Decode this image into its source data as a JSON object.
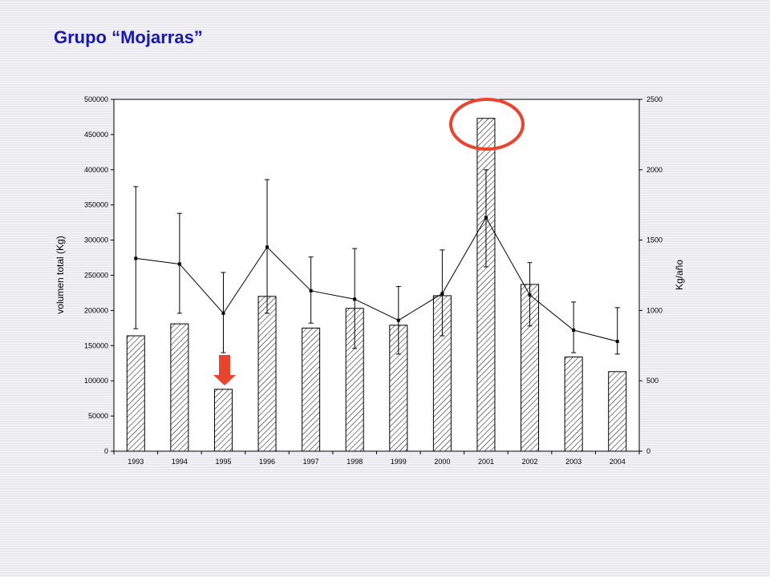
{
  "slide": {
    "title": "Grupo “Mojarras”"
  },
  "chart_data": {
    "type": "bar",
    "categories": [
      "1993",
      "1994",
      "1995",
      "1996",
      "1997",
      "1998",
      "1999",
      "2000",
      "2001",
      "2002",
      "2003",
      "2004"
    ],
    "series": [
      {
        "type": "bar",
        "axis": "left",
        "values": [
          164000,
          181000,
          88000,
          220000,
          175000,
          203000,
          179000,
          221000,
          473000,
          237000,
          134000,
          113000
        ]
      },
      {
        "type": "line",
        "axis": "right",
        "values": [
          1370,
          1330,
          980,
          1450,
          1140,
          1080,
          930,
          1120,
          1660,
          1110,
          860,
          780
        ],
        "error_low": [
          870,
          980,
          700,
          980,
          910,
          730,
          690,
          820,
          1310,
          890,
          700,
          690
        ],
        "error_high": [
          1880,
          1690,
          1270,
          1930,
          1380,
          1440,
          1170,
          1430,
          2000,
          1340,
          1060,
          1020
        ]
      }
    ],
    "ylabel": "volumen total (Kg)",
    "ylabel_right": "Kg/año",
    "ylim": [
      0,
      500000
    ],
    "ylim_right": [
      0,
      2500
    ],
    "yticks": [
      "0",
      "50000",
      "100000",
      "150000",
      "200000",
      "250000",
      "300000",
      "350000",
      "400000",
      "450000",
      "500000"
    ],
    "yticks_right": [
      "0",
      "500",
      "1000",
      "1500",
      "2000",
      "2500"
    ],
    "bar_pattern": "diagonal-hatch",
    "grid": false,
    "annotations": [
      {
        "type": "circle",
        "target": "2001",
        "color": "#e8452f"
      },
      {
        "type": "arrow-down",
        "target": "1995",
        "color": "#e8452f"
      }
    ]
  }
}
